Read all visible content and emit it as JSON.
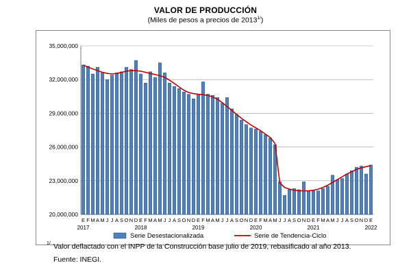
{
  "header": {
    "title": "VALOR DE PRODUCCIÓN",
    "subtitle": "(Miles de pesos a precios de 2013",
    "subtitle_sup": "1/",
    "subtitle_end": ")"
  },
  "footer": {
    "footnote_mark": "1/",
    "footnote": "Valor deflactado con el INPP de la Construcción base julio de 2019, rebasificado al año 2013.",
    "source": "Fuente: INEGI."
  },
  "colors": {
    "bar_fill": "#4f81bd",
    "bar_stroke": "#1f3f73",
    "trend_line": "#c00000"
  },
  "chart_data": {
    "type": "bar",
    "title": "VALOR DE PRODUCCIÓN",
    "subtitle": "(Miles de pesos a precios de 2013 1/)",
    "xlabel": "",
    "ylabel": "",
    "ylim": [
      20000000,
      35000000
    ],
    "y_ticks": [
      20000000,
      23000000,
      26000000,
      29000000,
      32000000,
      35000000
    ],
    "y_tick_labels": [
      "20,000,000",
      "23,000,000",
      "26,000,000",
      "29,000,000",
      "32,000,000",
      "35,000,000"
    ],
    "month_labels": [
      "E",
      "F",
      "M",
      "A",
      "M",
      "J",
      "J",
      "A",
      "S",
      "O",
      "N",
      "D",
      "E",
      "F",
      "M",
      "A",
      "M",
      "J",
      "J",
      "A",
      "S",
      "O",
      "N",
      "D",
      "E",
      "F",
      "M",
      "A",
      "M",
      "J",
      "J",
      "A",
      "S",
      "O",
      "N",
      "D",
      "E",
      "F",
      "M",
      "A",
      "M",
      "J",
      "J",
      "A",
      "S",
      "O",
      "N",
      "D",
      "E",
      "F",
      "M",
      "A",
      "M",
      "J",
      "J",
      "A",
      "S",
      "O",
      "N",
      "D",
      "E"
    ],
    "year_labels": [
      {
        "label": "2017",
        "index": 0
      },
      {
        "label": "2018",
        "index": 12
      },
      {
        "label": "2019",
        "index": 24
      },
      {
        "label": "2020",
        "index": 36
      },
      {
        "label": "2021",
        "index": 48
      },
      {
        "label": "2022",
        "index": 60
      }
    ],
    "grid": true,
    "legend_position": "bottom",
    "series": [
      {
        "name": "Serie Desestacionalizada",
        "type": "bar",
        "values": [
          33300000,
          33200000,
          32500000,
          33100000,
          32600000,
          32000000,
          32400000,
          32600000,
          32700000,
          33100000,
          32900000,
          33700000,
          32500000,
          31700000,
          32700000,
          32200000,
          33500000,
          32600000,
          31700000,
          31400000,
          31200000,
          30900000,
          30700000,
          30300000,
          30700000,
          31800000,
          30700000,
          30600000,
          30400000,
          29900000,
          30400000,
          29400000,
          28900000,
          28400000,
          28000000,
          27700000,
          27600000,
          27400000,
          27100000,
          26800000,
          26200000,
          22900000,
          21700000,
          22200000,
          22300000,
          22200000,
          22900000,
          22100000,
          22100000,
          22100000,
          22300000,
          22500000,
          23500000,
          23100000,
          23200000,
          23600000,
          23900000,
          24200000,
          24300000,
          23600000,
          24400000
        ]
      },
      {
        "name": "Serie de Tendencia-Ciclo",
        "type": "line",
        "values": [
          33300000,
          33100000,
          32950000,
          32800000,
          32650000,
          32550000,
          32500000,
          32550000,
          32650000,
          32750000,
          32800000,
          32800000,
          32750000,
          32650000,
          32550000,
          32450000,
          32350000,
          32200000,
          31950000,
          31650000,
          31350000,
          31050000,
          30850000,
          30750000,
          30700000,
          30650000,
          30600000,
          30450000,
          30250000,
          29950000,
          29600000,
          29250000,
          28900000,
          28550000,
          28250000,
          27950000,
          27700000,
          27450000,
          27150000,
          26850000,
          26300000,
          22800000,
          22400000,
          22250000,
          22150000,
          22100000,
          22100000,
          22100000,
          22150000,
          22250000,
          22400000,
          22600000,
          22850000,
          23100000,
          23350000,
          23600000,
          23800000,
          24000000,
          24150000,
          24250000,
          24350000
        ]
      }
    ]
  }
}
